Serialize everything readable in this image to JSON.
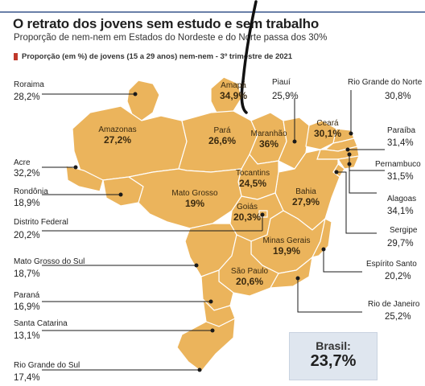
{
  "header": {
    "title": "O retrato dos jovens sem estudo e sem trabalho",
    "subtitle": "Proporção de nem-nem em Estados do Nordeste e do Norte passa dos 30%",
    "legend": "Proporção (em %) de jovens (15 a 29 anos) nem-nem - 3º trimestre de 2021"
  },
  "colors": {
    "map_fill": "#ebb45c",
    "map_border": "#ffffff",
    "legend_swatch": "#c0392b",
    "total_box": "#dfe6ef"
  },
  "total": {
    "label": "Brasil:",
    "value": "23,7%"
  },
  "states_inside": [
    {
      "name": "Amapá",
      "value": "34,9%"
    },
    {
      "name": "Amazonas",
      "value": "27,2%"
    },
    {
      "name": "Pará",
      "value": "26,6%"
    },
    {
      "name": "Maranhão",
      "value": "36%"
    },
    {
      "name": "Ceará",
      "value": "30,1%"
    },
    {
      "name": "Tocantins",
      "value": "24,5%"
    },
    {
      "name": "Mato Grosso",
      "value": "19%"
    },
    {
      "name": "Goiás",
      "value": "20,3%"
    },
    {
      "name": "Bahia",
      "value": "27,9%"
    },
    {
      "name": "Minas Gerais",
      "value": "19,9%"
    },
    {
      "name": "São Paulo",
      "value": "20,6%"
    }
  ],
  "states_outside": [
    {
      "name": "Roraima",
      "value": "28,2%"
    },
    {
      "name": "Piauí",
      "value": "25,9%"
    },
    {
      "name": "Rio Grande do Norte",
      "value": "30,8%"
    },
    {
      "name": "Acre",
      "value": "32,2%"
    },
    {
      "name": "Paraíba",
      "value": "31,4%"
    },
    {
      "name": "Pernambuco",
      "value": "31,5%"
    },
    {
      "name": "Rondônia",
      "value": "18,9%"
    },
    {
      "name": "Alagoas",
      "value": "34,1%"
    },
    {
      "name": "Distrito Federal",
      "value": "20,2%"
    },
    {
      "name": "Sergipe",
      "value": "29,7%"
    },
    {
      "name": "Mato Grosso do Sul",
      "value": "18,7%"
    },
    {
      "name": "Espírito Santo",
      "value": "20,2%"
    },
    {
      "name": "Paraná",
      "value": "16,9%"
    },
    {
      "name": "Rio de Janeiro",
      "value": "25,2%"
    },
    {
      "name": "Santa Catarina",
      "value": "13,1%"
    },
    {
      "name": "Rio Grande do Sul",
      "value": "17,4%"
    }
  ]
}
